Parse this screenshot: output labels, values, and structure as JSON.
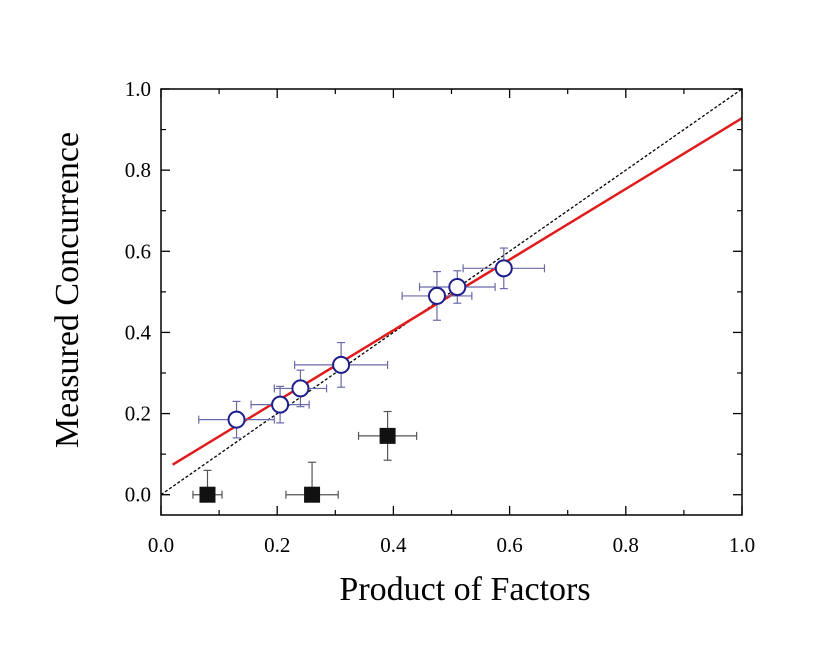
{
  "chart_data": {
    "type": "scatter",
    "xlabel": "Product of Factors",
    "ylabel": "Measured Concurrence",
    "xlim": [
      0.0,
      1.0
    ],
    "ylim": [
      -0.05,
      1.0
    ],
    "x_ticks": [
      "0.0",
      "0.2",
      "0.4",
      "0.6",
      "0.8",
      "1.0"
    ],
    "y_ticks": [
      "0.0",
      "0.2",
      "0.4",
      "0.6",
      "0.8",
      "1.0"
    ],
    "x_tick_values": [
      0.0,
      0.2,
      0.4,
      0.6,
      0.8,
      1.0
    ],
    "y_tick_values": [
      0.0,
      0.2,
      0.4,
      0.6,
      0.8,
      1.0
    ],
    "grid": false,
    "series": [
      {
        "marker": "open-circle",
        "color": "#1e1e8c",
        "error_color": "#6a6aa8",
        "points": [
          {
            "x": 0.13,
            "y": 0.185,
            "xerr": [
              0.065,
              0.065
            ],
            "yerr": [
              0.045,
              0.045
            ]
          },
          {
            "x": 0.205,
            "y": 0.222,
            "xerr": [
              0.05,
              0.05
            ],
            "yerr": [
              0.045,
              0.045
            ]
          },
          {
            "x": 0.24,
            "y": 0.262,
            "xerr": [
              0.045,
              0.045
            ],
            "yerr": [
              0.045,
              0.045
            ]
          },
          {
            "x": 0.31,
            "y": 0.32,
            "xerr": [
              0.08,
              0.08
            ],
            "yerr": [
              0.055,
              0.055
            ]
          },
          {
            "x": 0.475,
            "y": 0.49,
            "xerr": [
              0.06,
              0.06
            ],
            "yerr": [
              0.06,
              0.06
            ]
          },
          {
            "x": 0.51,
            "y": 0.512,
            "xerr": [
              0.065,
              0.065
            ],
            "yerr": [
              0.04,
              0.04
            ]
          },
          {
            "x": 0.59,
            "y": 0.558,
            "xerr": [
              0.07,
              0.07
            ],
            "yerr": [
              0.05,
              0.05
            ]
          }
        ]
      },
      {
        "marker": "filled-square",
        "color": "#111111",
        "error_color": "#555555",
        "points": [
          {
            "x": 0.08,
            "y": 0.0,
            "xerr": [
              0.025,
              0.025
            ],
            "yerr": [
              0.0,
              0.06
            ]
          },
          {
            "x": 0.26,
            "y": 0.0,
            "xerr": [
              0.045,
              0.045
            ],
            "yerr": [
              0.0,
              0.08
            ]
          },
          {
            "x": 0.39,
            "y": 0.145,
            "xerr": [
              0.05,
              0.05
            ],
            "yerr": [
              0.06,
              0.06
            ]
          }
        ]
      }
    ],
    "lines": [
      {
        "kind": "fit",
        "color": "#e01b1b",
        "style": "solid",
        "x": [
          0.02,
          1.0
        ],
        "y": [
          0.074,
          0.928
        ]
      },
      {
        "kind": "reference",
        "color": "#000000",
        "style": "dotted",
        "x": [
          0.0,
          1.0
        ],
        "y": [
          0.0,
          1.0
        ]
      }
    ]
  }
}
